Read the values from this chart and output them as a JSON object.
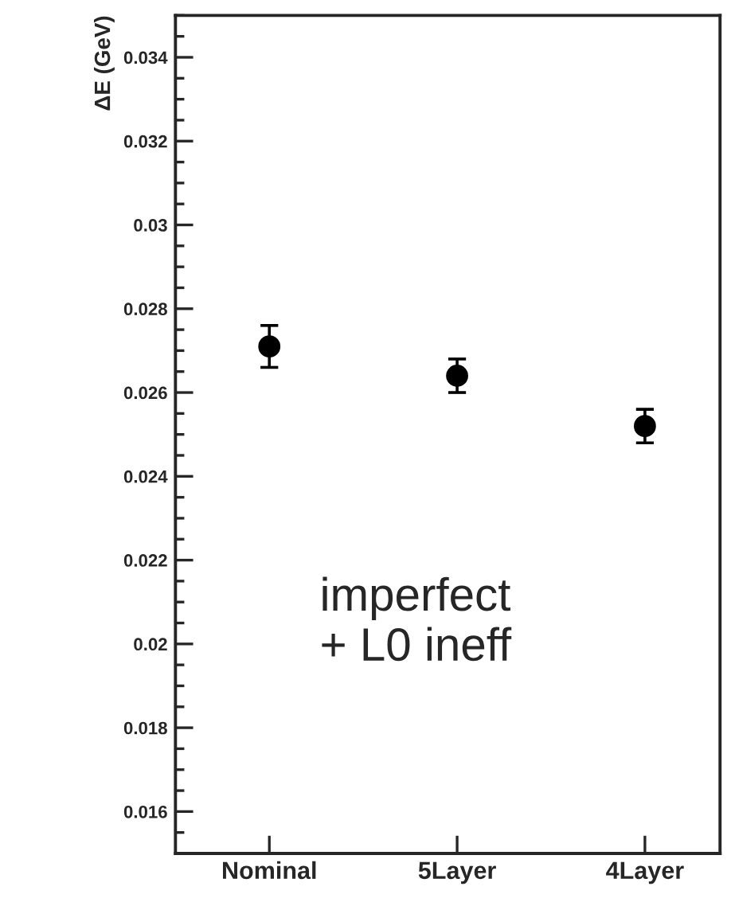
{
  "chart_data": {
    "type": "scatter",
    "ylabel": "ΔE (GeV)",
    "categories": [
      "Nominal",
      "5Layer",
      "4Layer"
    ],
    "series": [
      {
        "color": "#000000",
        "values": [
          0.0271,
          0.0264,
          0.0252
        ],
        "errors": [
          0.0005,
          0.0004,
          0.0004
        ]
      }
    ],
    "ylim": [
      0.015,
      0.035
    ],
    "yticks": [
      0.016,
      0.018,
      0.02,
      0.022,
      0.024,
      0.026,
      0.028,
      0.03,
      0.032,
      0.034
    ],
    "annotations": [
      "imperfect\n+ L0 ineff"
    ],
    "marker": "circle",
    "grid": false,
    "legend": false
  }
}
